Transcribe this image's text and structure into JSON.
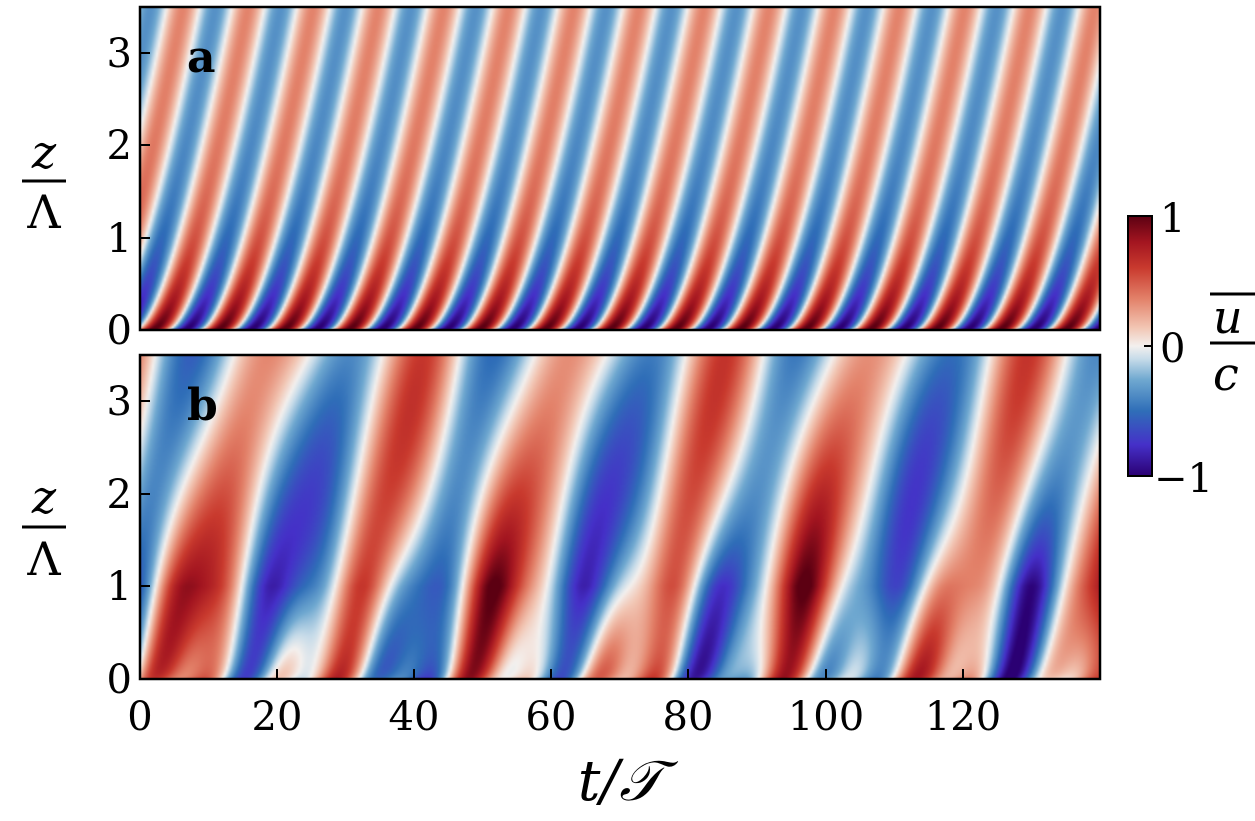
{
  "chart_data": [
    {
      "type": "heatmap",
      "panel_label": "a",
      "ylabel_num": "z",
      "ylabel_den": "Λ",
      "y_ticks": [
        "0",
        "1",
        "2",
        "3"
      ],
      "ylim": [
        0,
        3.5
      ],
      "xlim": [
        0,
        140
      ],
      "regime": "periodic",
      "period": 9.5,
      "colormap": [
        "#2b0073",
        "#4530c8",
        "#2f6eb8",
        "#6fa8d0",
        "#c6dbe9",
        "#f3f0ee",
        "#f2c6b4",
        "#e3826a",
        "#c93a2e",
        "#a31520",
        "#5c0012"
      ]
    },
    {
      "type": "heatmap",
      "panel_label": "b",
      "ylabel_num": "z",
      "ylabel_den": "Λ",
      "y_ticks": [
        "0",
        "1",
        "2",
        "3"
      ],
      "x_ticks": [
        "0",
        "20",
        "40",
        "60",
        "80",
        "100",
        "120"
      ],
      "xlabel": "t/𝒯",
      "ylim": [
        0,
        3.5
      ],
      "xlim": [
        0,
        140
      ],
      "regime": "irregular"
    }
  ],
  "colorbar": {
    "ticks": [
      "1",
      "0",
      "−1"
    ],
    "label_num": "u",
    "label_den": "c",
    "range": [
      -1,
      1
    ]
  }
}
